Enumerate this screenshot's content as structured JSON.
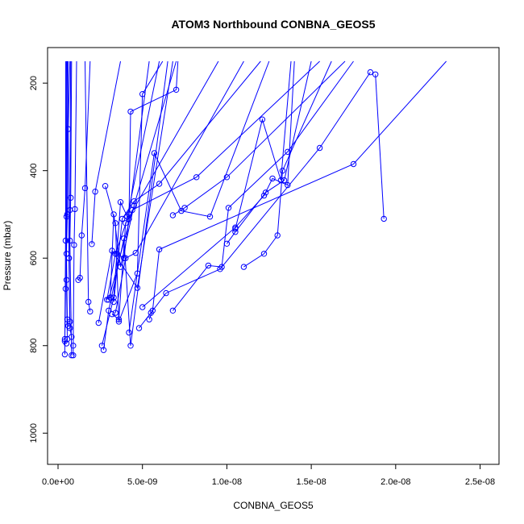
{
  "chart_data": {
    "type": "line",
    "title": "ATOM3 Northbound CONBNA_GEOS5",
    "xlabel": "CONBNA_GEOS5",
    "ylabel": "Pressure (mbar)",
    "xlim": [
      0,
      2.55e-08
    ],
    "ylim": [
      1040,
      150
    ],
    "y_reversed": true,
    "x_ticks": [
      0,
      5e-09,
      1e-08,
      1.5e-08,
      2e-08,
      2.5e-08
    ],
    "x_tick_labels": [
      "0.0e+00",
      "5.0e-09",
      "1.0e-08",
      "1.5e-08",
      "2.0e-08",
      "2.5e-08"
    ],
    "y_ticks": [
      200,
      400,
      600,
      800,
      1000
    ],
    "y_tick_labels": [
      "200",
      "400",
      "600",
      "800",
      "1000"
    ],
    "grid": false,
    "color": "#0000ff",
    "series": [
      {
        "x": [
          1.88e-08,
          1.93e-08
        ],
        "y": [
          180,
          510
        ]
      },
      {
        "x": [
          2.3e-08,
          1.75e-08,
          6e-09,
          5.6e-09,
          5.4e-09
        ],
        "y": [
          150,
          385,
          580,
          720,
          740
        ]
      },
      {
        "x": [
          1.85e-08,
          1.55e-08,
          9.6e-09,
          6.4e-09,
          5.5e-09,
          4.8e-09
        ],
        "y": [
          175,
          348,
          625,
          680,
          725,
          760
        ]
      },
      {
        "x": [
          1.75e-08,
          1.36e-08,
          1.01e-08,
          9.7e-09,
          8.9e-09,
          6.8e-09
        ],
        "y": [
          150,
          357,
          485,
          620,
          617,
          720
        ]
      },
      {
        "x": [
          1.62e-08,
          1.33e-08,
          1.3e-08,
          1.22e-08,
          1.1e-08
        ],
        "y": [
          150,
          400,
          548,
          590,
          620
        ]
      },
      {
        "x": [
          1.5e-08,
          1.34e-08,
          1.23e-08,
          1.05e-08,
          1e-08
        ],
        "y": [
          150,
          422,
          450,
          540,
          567
        ]
      },
      {
        "x": [
          1.4e-08,
          1.36e-08,
          1.27e-08,
          1.22e-08,
          1.05e-08,
          5e-09
        ],
        "y": [
          150,
          433,
          418,
          457,
          530,
          712
        ]
      },
      {
        "x": [
          1.38e-08,
          1.32e-08,
          1.21e-08,
          1.05e-08
        ],
        "y": [
          150,
          422,
          283,
          533
        ]
      },
      {
        "x": [
          1.7e-08,
          1e-08,
          7.5e-09,
          6.8e-09
        ],
        "y": [
          150,
          415,
          485,
          502
        ]
      },
      {
        "x": [
          1.55e-08,
          8.2e-09,
          4.4e-09,
          3e-09
        ],
        "y": [
          150,
          415,
          490,
          695
        ]
      },
      {
        "x": [
          1.25e-08,
          9e-09,
          7.3e-09,
          5.7e-09,
          4.2e-09
        ],
        "y": [
          150,
          505,
          492,
          360,
          770
        ]
      },
      {
        "x": [
          1.2e-08,
          6e-09,
          4.5e-09,
          3.8e-09,
          3.3e-09
        ],
        "y": [
          150,
          430,
          470,
          510,
          700
        ]
      },
      {
        "x": [
          1.1e-08,
          4.6e-09,
          4e-09,
          3.4e-09
        ],
        "y": [
          150,
          588,
          600,
          725
        ]
      },
      {
        "x": [
          9.5e-09,
          4e-09,
          3.6e-09,
          3.2e-09
        ],
        "y": [
          150,
          520,
          740,
          728
        ]
      },
      {
        "x": [
          7.1e-09,
          7e-09,
          4.3e-09,
          4.2e-09,
          3.9e-09,
          3.5e-09
        ],
        "y": [
          150,
          215,
          265,
          510,
          600,
          590
        ]
      },
      {
        "x": [
          6.2e-09,
          5e-09,
          4.7e-09,
          3.6e-09,
          3.4e-09,
          2.8e-09
        ],
        "y": [
          150,
          225,
          635,
          745,
          520,
          435
        ]
      },
      {
        "x": [
          7e-09,
          4.5e-09,
          3.7e-09,
          3.3e-09,
          3.1e-09
        ],
        "y": [
          150,
          480,
          620,
          500,
          690
        ]
      },
      {
        "x": [
          6.5e-09,
          4.3e-09,
          3.9e-09,
          3e-09,
          2.7e-09
        ],
        "y": [
          150,
          800,
          555,
          720,
          810
        ]
      },
      {
        "x": [
          6.8e-09,
          4.7e-09,
          3.2e-09,
          2.4e-09
        ],
        "y": [
          150,
          668,
          583,
          748
        ]
      },
      {
        "x": [
          6e-09,
          4.1e-09,
          3.7e-09,
          3.3e-09,
          2.6e-09
        ],
        "y": [
          150,
          505,
          472,
          690,
          800
        ]
      },
      {
        "x": [
          5.4e-09,
          4.2e-09,
          3.4e-09,
          2.9e-09
        ],
        "y": [
          150,
          500,
          590,
          695
        ]
      },
      {
        "x": [
          3.7e-09,
          2.2e-09,
          2e-09
        ],
        "y": [
          150,
          448,
          568
        ]
      },
      {
        "x": [
          1.9e-09,
          1.6e-09,
          1.4e-09,
          1.3e-09,
          1.2e-09
        ],
        "y": [
          150,
          440,
          548,
          645,
          650
        ]
      },
      {
        "x": [
          1.6e-09,
          1.8e-09,
          1.9e-09
        ],
        "y": [
          150,
          700,
          722
        ]
      },
      {
        "x": [
          1.1e-09,
          1e-09,
          9.5e-10,
          9e-10,
          9e-10
        ],
        "y": [
          150,
          488,
          570,
          800,
          822
        ]
      },
      {
        "x": [
          8e-10,
          7.5e-10,
          7e-10,
          8e-10
        ],
        "y": [
          150,
          462,
          560,
          822
        ]
      },
      {
        "x": [
          7e-10,
          6e-10,
          6.5e-10,
          7e-10,
          8e-10
        ],
        "y": [
          150,
          305,
          600,
          760,
          780
        ]
      },
      {
        "x": [
          6e-10,
          5.5e-10,
          5e-10,
          5.5e-10,
          6e-10
        ],
        "y": [
          150,
          500,
          590,
          740,
          755
        ]
      },
      {
        "x": [
          5.5e-10,
          5e-10,
          5e-10,
          5.5e-10
        ],
        "y": [
          150,
          505,
          650,
          785
        ]
      },
      {
        "x": [
          5e-10,
          4.5e-10,
          4e-10,
          4e-10
        ],
        "y": [
          150,
          560,
          785,
          820
        ]
      },
      {
        "x": [
          7.5e-10,
          7e-10,
          6.5e-10,
          7e-10
        ],
        "y": [
          150,
          490,
          600,
          745
        ]
      },
      {
        "x": [
          4.5e-10,
          4.5e-10,
          4e-10,
          5e-10
        ],
        "y": [
          150,
          670,
          790,
          795
        ]
      }
    ]
  }
}
